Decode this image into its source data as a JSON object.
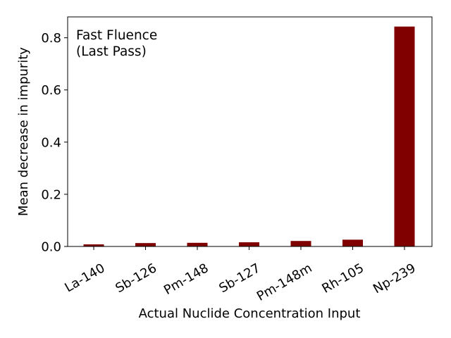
{
  "chart_data": {
    "type": "bar",
    "categories": [
      "La-140",
      "Sb-126",
      "Pm-148",
      "Sb-127",
      "Pm-148m",
      "Rh-105",
      "Np-239"
    ],
    "values": [
      0.008,
      0.013,
      0.014,
      0.016,
      0.021,
      0.026,
      0.843
    ],
    "annotation_lines": [
      "Fast Fluence",
      "(Last Pass)"
    ],
    "xlabel": "Actual Nuclide Concentration Input",
    "ylabel": "Mean decrease in impurity",
    "ylim": [
      0,
      0.88
    ],
    "yticks": [
      0.0,
      0.2,
      0.4,
      0.6,
      0.8
    ],
    "ytick_labels": [
      "0.0",
      "0.2",
      "0.4",
      "0.6",
      "0.8"
    ],
    "bar_color": "#800000",
    "grid": false
  }
}
